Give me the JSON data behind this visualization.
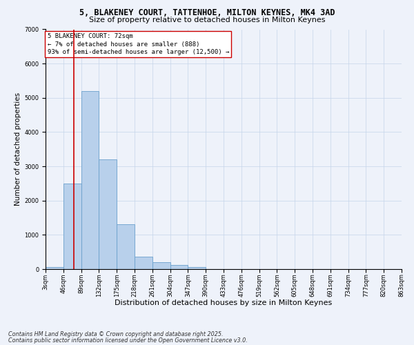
{
  "title_line1": "5, BLAKENEY COURT, TATTENHOE, MILTON KEYNES, MK4 3AD",
  "title_line2": "Size of property relative to detached houses in Milton Keynes",
  "xlabel": "Distribution of detached houses by size in Milton Keynes",
  "ylabel": "Number of detached properties",
  "bar_color": "#b8d0eb",
  "bar_edge_color": "#6aa0cc",
  "bg_color": "#eef2fa",
  "grid_color": "#c5d5ea",
  "vline_color": "#cc0000",
  "vline_x": 72,
  "annotation_title": "5 BLAKENEY COURT: 72sqm",
  "annotation_line1": "← 7% of detached houses are smaller (888)",
  "annotation_line2": "93% of semi-detached houses are larger (12,500) →",
  "annotation_box_color": "#ffffff",
  "annotation_box_edge": "#cc0000",
  "bin_edges": [
    3,
    46,
    89,
    132,
    175,
    218,
    261,
    304,
    347,
    390,
    433,
    476,
    519,
    562,
    605,
    648,
    691,
    734,
    777,
    820,
    863
  ],
  "bar_heights": [
    60,
    2500,
    5200,
    3200,
    1300,
    370,
    200,
    130,
    60,
    0,
    0,
    0,
    0,
    0,
    0,
    0,
    0,
    0,
    0,
    0
  ],
  "ylim": [
    0,
    7000
  ],
  "yticks": [
    0,
    1000,
    2000,
    3000,
    4000,
    5000,
    6000,
    7000
  ],
  "footnote1": "Contains HM Land Registry data © Crown copyright and database right 2025.",
  "footnote2": "Contains public sector information licensed under the Open Government Licence v3.0.",
  "title_fontsize": 8.5,
  "subtitle_fontsize": 8.0,
  "ylabel_fontsize": 7.5,
  "xlabel_fontsize": 8.0,
  "tick_fontsize": 6.0,
  "annotation_fontsize": 6.5,
  "footnote_fontsize": 5.8
}
